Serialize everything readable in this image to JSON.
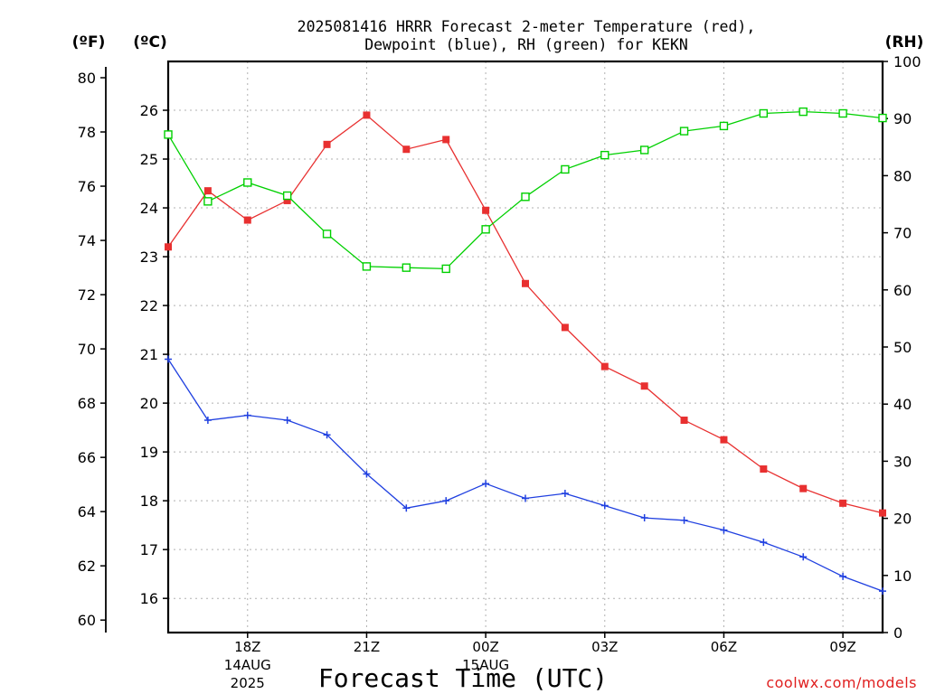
{
  "chart_data": {
    "type": "line",
    "title_line1": "2025081416 HRRR Forecast 2-meter Temperature (red),",
    "title_line2": "Dewpoint (blue), RH (green) for KEKN",
    "axis_label_f": "(ºF)",
    "axis_label_c": "(ºC)",
    "axis_label_rh": "(RH)",
    "xlabel": "Forecast Time (UTC)",
    "credit": "coolwx.com/models",
    "x": [
      "16Z",
      "17Z",
      "18Z",
      "19Z",
      "20Z",
      "21Z",
      "22Z",
      "23Z",
      "00Z",
      "01Z",
      "02Z",
      "03Z",
      "04Z",
      "05Z",
      "06Z",
      "07Z",
      "08Z",
      "09Z",
      "10Z"
    ],
    "x_ticks": [
      {
        "label": "18Z",
        "sub": [
          "14AUG",
          "2025"
        ]
      },
      {
        "label": "21Z",
        "sub": []
      },
      {
        "label": "00Z",
        "sub": [
          "15AUG"
        ]
      },
      {
        "label": "03Z",
        "sub": []
      },
      {
        "label": "06Z",
        "sub": []
      },
      {
        "label": "09Z",
        "sub": []
      }
    ],
    "xlim": [
      "16Z",
      "10Z"
    ],
    "ylim_c": [
      15.3,
      27.0
    ],
    "ylim_rh": [
      0,
      100
    ],
    "yticks_f": [
      "60",
      "62",
      "64",
      "66",
      "68",
      "70",
      "72",
      "74",
      "76",
      "78",
      "80"
    ],
    "yticks_c": [
      "16",
      "17",
      "18",
      "19",
      "20",
      "21",
      "22",
      "23",
      "24",
      "25",
      "26"
    ],
    "yticks_rh": [
      "0",
      "10",
      "20",
      "30",
      "40",
      "50",
      "60",
      "70",
      "80",
      "90",
      "100"
    ],
    "grid": true,
    "series": [
      {
        "name": "Temperature",
        "axis": "C",
        "color": "#e83030",
        "marker": "filled-square",
        "values": [
          23.2,
          24.35,
          23.75,
          24.15,
          25.3,
          25.9,
          25.2,
          25.4,
          23.95,
          22.45,
          21.55,
          20.75,
          20.35,
          19.65,
          19.25,
          18.65,
          18.25,
          17.95,
          17.75
        ]
      },
      {
        "name": "Dewpoint",
        "axis": "C",
        "color": "#2040e0",
        "marker": "plus",
        "values": [
          20.9,
          19.65,
          19.75,
          19.65,
          19.35,
          18.55,
          17.85,
          18.0,
          18.35,
          18.05,
          18.15,
          17.9,
          17.65,
          17.6,
          17.4,
          17.15,
          16.85,
          16.45,
          16.15
        ]
      },
      {
        "name": "RH",
        "axis": "RH",
        "color": "#00d000",
        "marker": "open-square",
        "values": [
          87.2,
          75.5,
          78.8,
          76.5,
          69.8,
          64.1,
          63.9,
          63.7,
          70.6,
          76.3,
          81.1,
          83.6,
          84.5,
          87.8,
          88.7,
          90.9,
          91.2,
          90.9,
          90.1
        ]
      }
    ]
  }
}
